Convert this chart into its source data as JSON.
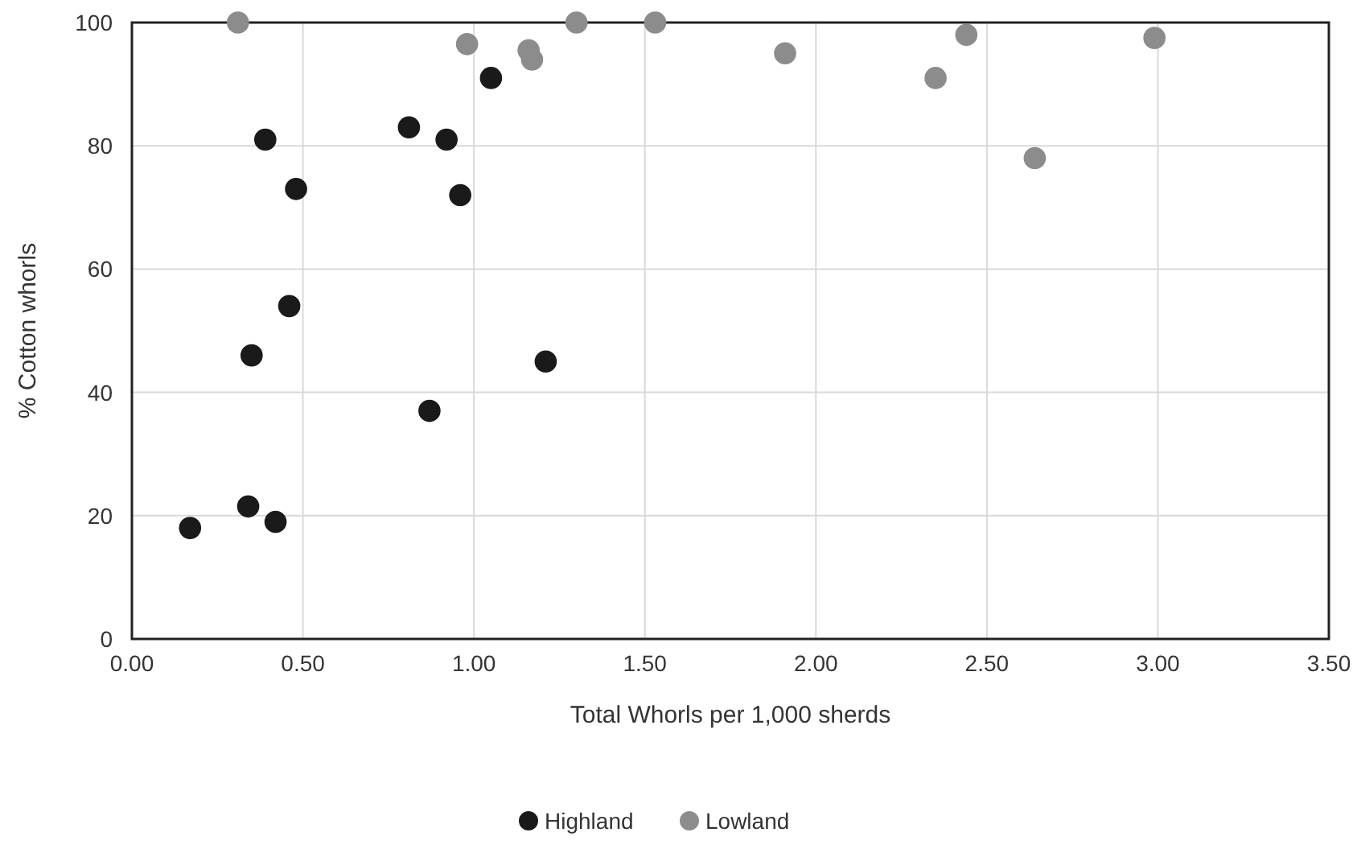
{
  "chart_data": {
    "type": "scatter",
    "xlabel": "Total Whorls per 1,000 sherds",
    "ylabel": "% Cotton whorls",
    "xlim": [
      0,
      3.5
    ],
    "xticks": [
      {
        "value": 0,
        "label": "0.00"
      },
      {
        "value": 0.5,
        "label": "0.50"
      },
      {
        "value": 1,
        "label": "1.00"
      },
      {
        "value": 1.5,
        "label": "1.50"
      },
      {
        "value": 2,
        "label": "2.00"
      },
      {
        "value": 2.5,
        "label": "2.50"
      },
      {
        "value": 3,
        "label": "3.00"
      },
      {
        "value": 3.5,
        "label": "3.50"
      }
    ],
    "ylim": [
      0,
      100
    ],
    "yticks": [
      0,
      20,
      40,
      60,
      80,
      100
    ],
    "grid": true,
    "legend": "bottom",
    "marker": "circle",
    "series": [
      {
        "name": "Highland",
        "color": "#1a1a1a",
        "x": [
          0.17,
          0.34,
          0.42,
          0.35,
          0.46,
          0.39,
          0.48,
          0.81,
          0.92,
          0.96,
          0.87,
          1.05,
          1.21
        ],
        "values": [
          18,
          21.5,
          19,
          46,
          54,
          81,
          73,
          83,
          81,
          72,
          37,
          91,
          45
        ]
      },
      {
        "name": "Lowland",
        "color": "#8c8c8c",
        "x": [
          0.31,
          0.98,
          1.16,
          1.17,
          1.3,
          1.53,
          1.91,
          2.35,
          2.44,
          2.64,
          2.99
        ],
        "values": [
          100,
          96.5,
          95.5,
          94,
          100,
          100,
          95,
          91,
          98,
          78,
          97.5
        ]
      }
    ]
  }
}
